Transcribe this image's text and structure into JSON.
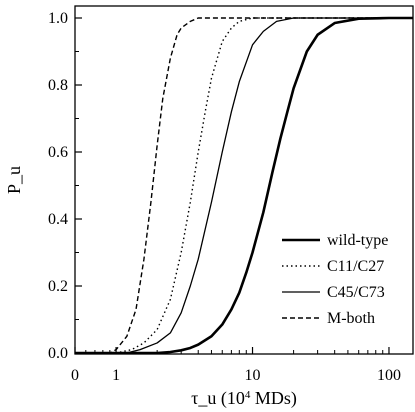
{
  "chart_data": {
    "type": "line",
    "xlabel_base": "τ_u (10",
    "xlabel_sup": "4",
    "xlabel_tail": " MDs)",
    "ylabel": "P_u",
    "x_scale": "log",
    "xlim": [
      0.5,
      150
    ],
    "ylim": [
      0,
      1.0
    ],
    "x_ticks": [
      {
        "value": 0.5,
        "label": "0"
      },
      {
        "value": 1,
        "label": "1"
      },
      {
        "value": 10,
        "label": "10"
      },
      {
        "value": 100,
        "label": "100"
      }
    ],
    "y_ticks": [
      {
        "value": 0.0,
        "label": "0.0"
      },
      {
        "value": 0.2,
        "label": "0.2"
      },
      {
        "value": 0.4,
        "label": "0.4"
      },
      {
        "value": 0.6,
        "label": "0.6"
      },
      {
        "value": 0.8,
        "label": "0.8"
      },
      {
        "value": 1.0,
        "label": "1.0"
      }
    ],
    "legend_position": "lower-right",
    "series": [
      {
        "name": "wild-type",
        "style": "solid-thick",
        "x": [
          0.5,
          2,
          2.5,
          3,
          3.5,
          4,
          5,
          6,
          7,
          8,
          9,
          10,
          12,
          14,
          16,
          18,
          20,
          25,
          30,
          40,
          60,
          100,
          150
        ],
        "y": [
          0,
          0,
          0.003,
          0.008,
          0.015,
          0.025,
          0.05,
          0.085,
          0.13,
          0.18,
          0.24,
          0.3,
          0.42,
          0.54,
          0.64,
          0.72,
          0.79,
          0.9,
          0.95,
          0.985,
          0.998,
          1.0,
          1.0
        ]
      },
      {
        "name": "C11/C27",
        "style": "dotted",
        "x": [
          0.5,
          1.0,
          1.3,
          1.6,
          2,
          2.5,
          3,
          3.5,
          4,
          4.5,
          5,
          6,
          7,
          8,
          10,
          12,
          15,
          20,
          30,
          150
        ],
        "y": [
          0,
          0,
          0.01,
          0.03,
          0.07,
          0.16,
          0.3,
          0.45,
          0.6,
          0.72,
          0.82,
          0.93,
          0.97,
          0.99,
          1.0,
          1.0,
          1.0,
          1.0,
          1.0,
          1.0
        ]
      },
      {
        "name": "C45/C73",
        "style": "solid-thin",
        "x": [
          0.5,
          1.2,
          1.5,
          2,
          2.5,
          3,
          3.5,
          4,
          5,
          6,
          7,
          8,
          10,
          12,
          15,
          20,
          25,
          150
        ],
        "y": [
          0,
          0,
          0.01,
          0.03,
          0.06,
          0.12,
          0.2,
          0.28,
          0.45,
          0.6,
          0.72,
          0.81,
          0.92,
          0.96,
          0.99,
          1.0,
          1.0,
          1.0
        ]
      },
      {
        "name": "M-both",
        "style": "dashed",
        "x": [
          0.5,
          0.9,
          1.0,
          1.2,
          1.4,
          1.6,
          1.8,
          2,
          2.2,
          2.5,
          2.8,
          3,
          3.5,
          4,
          5,
          150
        ],
        "y": [
          0,
          0,
          0.01,
          0.05,
          0.13,
          0.28,
          0.45,
          0.62,
          0.76,
          0.88,
          0.95,
          0.97,
          0.99,
          1.0,
          1.0,
          1.0
        ]
      }
    ]
  }
}
